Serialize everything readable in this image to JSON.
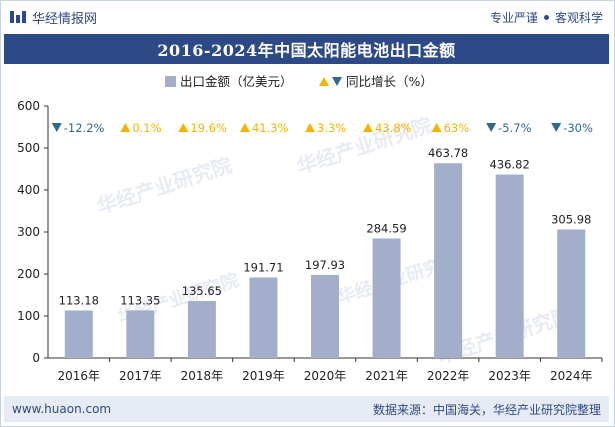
{
  "header": {
    "brand": "华经情报网",
    "tag1": "专业严谨",
    "tag2": "客观科学"
  },
  "watermark": "华经产业研究院",
  "chart_data": {
    "type": "bar",
    "title": "2016-2024年中国太阳能电池出口金额",
    "categories": [
      "2016年",
      "2017年",
      "2018年",
      "2019年",
      "2020年",
      "2021年",
      "2022年",
      "2023年",
      "2024年"
    ],
    "series": [
      {
        "name": "出口金额（亿美元）",
        "values": [
          113.18,
          113.35,
          135.65,
          191.71,
          197.93,
          284.59,
          463.78,
          436.82,
          305.98
        ],
        "value_labels": [
          "113.18",
          "113.35",
          "135.65",
          "191.71",
          "197.93",
          "284.59",
          "463.78",
          "436.82",
          "305.98"
        ],
        "color": "#a3afca"
      },
      {
        "name": "同比增长（%）",
        "values": [
          -12.2,
          0.1,
          19.6,
          41.3,
          3.3,
          43.8,
          63,
          -5.7,
          -30
        ],
        "value_labels": [
          "-12.2%",
          "0.1%",
          "19.6%",
          "41.3%",
          "3.3%",
          "43.8%",
          "63%",
          "-5.7%",
          "-30%"
        ],
        "up_color": "#f5b400",
        "down_color": "#2e6a8e"
      }
    ],
    "ylim": [
      0,
      600
    ],
    "yticks": [
      "0",
      "100",
      "200",
      "300",
      "400",
      "500",
      "600"
    ],
    "legend_position": "top-center",
    "grid": false
  },
  "footer": {
    "url": "www.huaon.com",
    "source": "数据来源：中国海关，华经产业研究院整理"
  }
}
